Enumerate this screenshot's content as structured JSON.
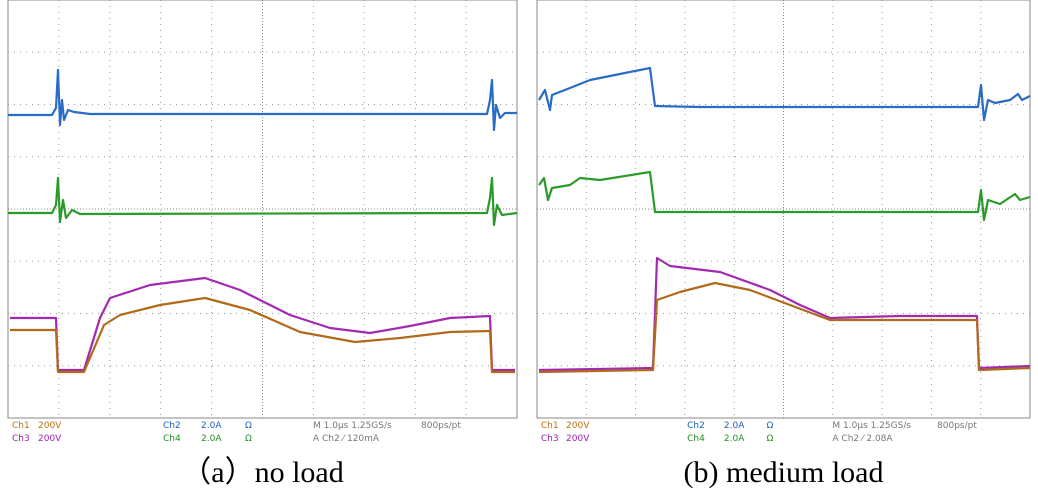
{
  "panels": [
    {
      "readouts": {
        "ch1": "Ch1",
        "ch1_scale": "200V",
        "ch3": "Ch3",
        "ch3_scale": "200V",
        "ch2": "Ch2",
        "ch2_scale": "2.0A",
        "ch2_unit": "Ω",
        "ch4": "Ch4",
        "ch4_scale": "2.0A",
        "ch4_unit": "Ω",
        "timebase": "M 1.0μs 1.25GS/s",
        "resolution": "800ps/pt",
        "trigger": "A  Ch2  ⁄  120mA"
      },
      "caption": "（a）no load"
    },
    {
      "readouts": {
        "ch1": "Ch1",
        "ch1_scale": "200V",
        "ch3": "Ch3",
        "ch3_scale": "200V",
        "ch2": "Ch2",
        "ch2_scale": "2.0A",
        "ch2_unit": "Ω",
        "ch4": "Ch4",
        "ch4_scale": "2.0A",
        "ch4_unit": "Ω",
        "timebase": "M 1.0μs 1.25GS/s",
        "resolution": "800ps/pt",
        "trigger": "A  Ch2  ⁄  2.08A"
      },
      "caption": "(b) medium load"
    }
  ]
}
